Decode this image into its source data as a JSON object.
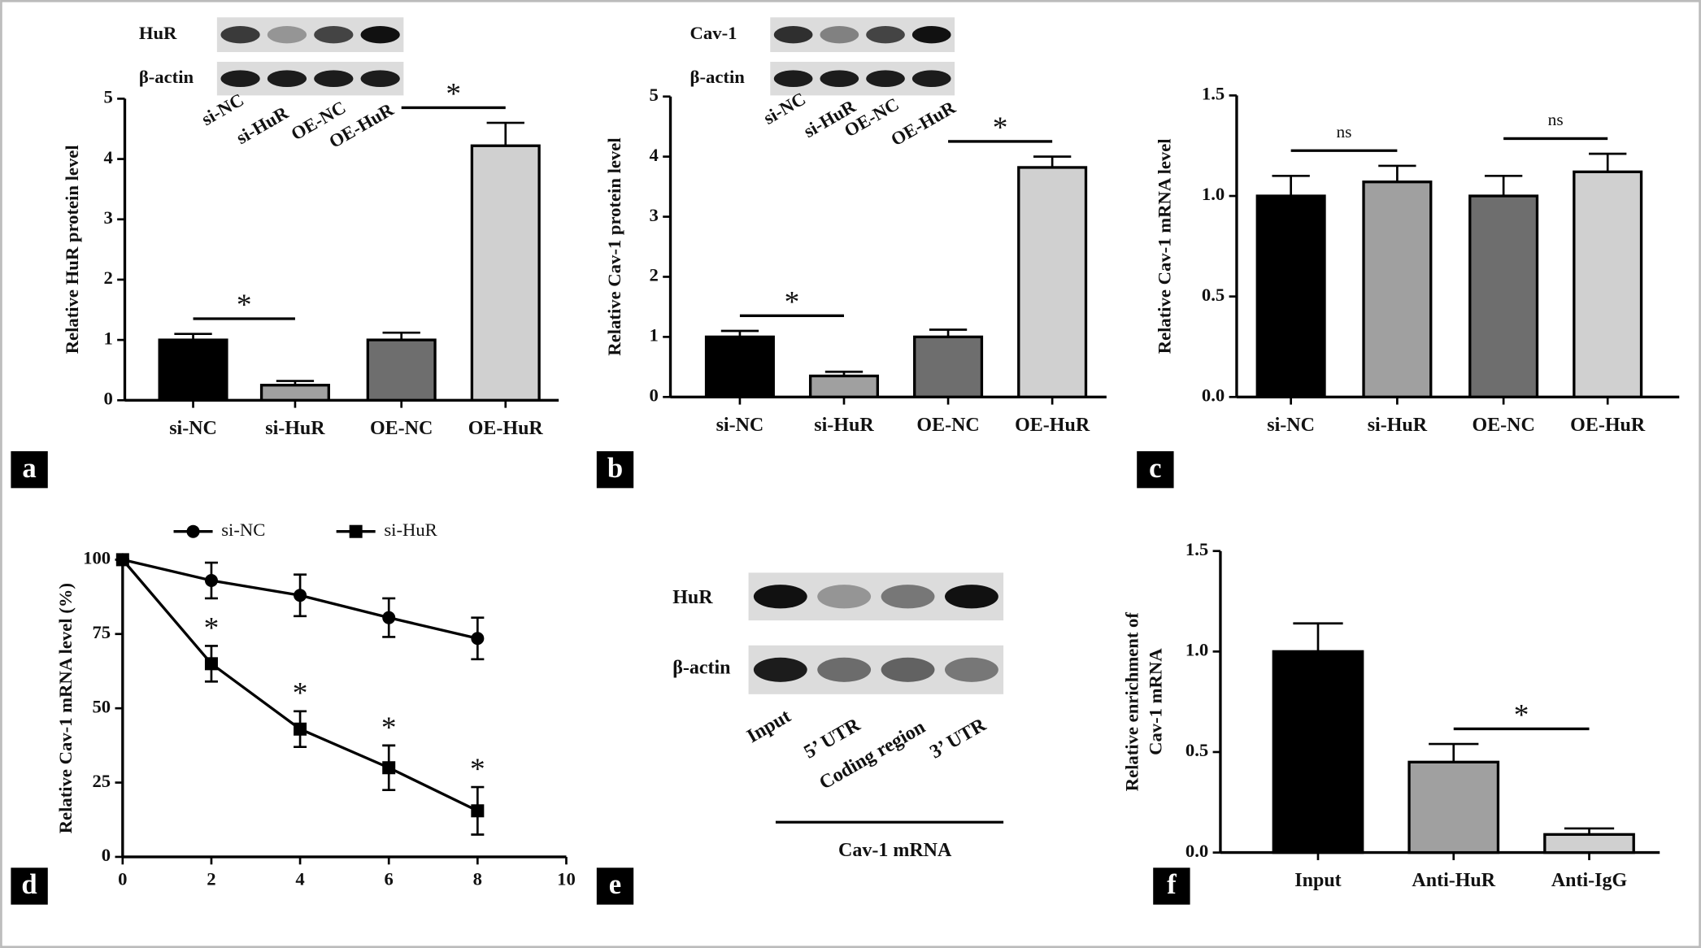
{
  "chart_data": [
    {
      "type": "bar",
      "panel": "a",
      "ylabel": "Relative HuR protein level",
      "categories": [
        "si-NC",
        "si-HuR",
        "OE-NC",
        "OE-HuR"
      ],
      "values": [
        1.0,
        0.25,
        1.0,
        4.22
      ],
      "errors": [
        0.1,
        0.07,
        0.12,
        0.38
      ],
      "colors": [
        "#000000",
        "#a0a0a0",
        "#6e6e6e",
        "#d0d0d0"
      ],
      "ylim": [
        0,
        5
      ],
      "yticks": [
        0,
        1,
        2,
        3,
        4,
        5
      ],
      "annotations": [
        {
          "text": "*",
          "between": [
            0,
            1
          ]
        },
        {
          "text": "*",
          "between": [
            2,
            3
          ]
        }
      ],
      "blot": {
        "rows": [
          "HuR",
          "β-actin"
        ],
        "lanes": [
          "si-NC",
          "si-HuR",
          "OE-NC",
          "OE-HuR"
        ]
      }
    },
    {
      "type": "bar",
      "panel": "b",
      "ylabel": "Relative Cav-1 protein level",
      "categories": [
        "si-NC",
        "si-HuR",
        "OE-NC",
        "OE-HuR"
      ],
      "values": [
        1.0,
        0.35,
        1.0,
        3.82
      ],
      "errors": [
        0.1,
        0.07,
        0.12,
        0.18
      ],
      "colors": [
        "#000000",
        "#a0a0a0",
        "#6e6e6e",
        "#d0d0d0"
      ],
      "ylim": [
        0,
        5
      ],
      "yticks": [
        0,
        1,
        2,
        3,
        4,
        5
      ],
      "annotations": [
        {
          "text": "*",
          "between": [
            0,
            1
          ]
        },
        {
          "text": "*",
          "between": [
            2,
            3
          ]
        }
      ],
      "blot": {
        "rows": [
          "Cav-1",
          "β-actin"
        ],
        "lanes": [
          "si-NC",
          "si-HuR",
          "OE-NC",
          "OE-HuR"
        ]
      }
    },
    {
      "type": "bar",
      "panel": "c",
      "ylabel": "Relative Cav-1 mRNA level",
      "categories": [
        "si-NC",
        "si-HuR",
        "OE-NC",
        "OE-HuR"
      ],
      "values": [
        1.0,
        1.07,
        1.0,
        1.12
      ],
      "errors": [
        0.1,
        0.08,
        0.1,
        0.09
      ],
      "colors": [
        "#000000",
        "#a0a0a0",
        "#6e6e6e",
        "#d0d0d0"
      ],
      "ylim": [
        0,
        1.5
      ],
      "yticks": [
        {
          "value": 0,
          "label": "0.0"
        },
        0.5,
        {
          "value": 1,
          "label": "1.0"
        },
        1.5
      ],
      "annotations": [
        {
          "text": "ns",
          "between": [
            0,
            1
          ]
        },
        {
          "text": "ns",
          "between": [
            2,
            3
          ]
        }
      ]
    },
    {
      "type": "line",
      "panel": "d",
      "ylabel": "Relative Cav-1 mRNA level (%)",
      "x": [
        0,
        2,
        4,
        6,
        8
      ],
      "xlim": [
        0,
        10
      ],
      "xticks": [
        0,
        2,
        4,
        6,
        8,
        10
      ],
      "ylim": [
        0,
        100
      ],
      "yticks": [
        0,
        25,
        50,
        75,
        100
      ],
      "series": [
        {
          "name": "si-NC",
          "color": "#000000",
          "marker": "circle",
          "values": [
            100,
            93,
            88,
            80.5,
            73.5
          ],
          "errors": [
            0,
            6,
            7,
            6.5,
            7
          ]
        },
        {
          "name": "si-HuR",
          "color": "#000000",
          "marker": "square",
          "values": [
            100,
            65,
            43,
            30,
            15.5
          ],
          "errors": [
            0,
            6,
            6,
            7.5,
            8
          ]
        }
      ],
      "annotations": [
        {
          "text": "*",
          "series": 1,
          "x": 2
        },
        {
          "text": "*",
          "series": 1,
          "x": 4
        },
        {
          "text": "*",
          "series": 1,
          "x": 6
        },
        {
          "text": "*",
          "series": 1,
          "x": 8
        }
      ]
    },
    {
      "type": "bar",
      "panel": "f",
      "ylabel": [
        "Relative enrichment of",
        "Cav-1 mRNA"
      ],
      "categories": [
        "Input",
        "Anti-HuR",
        "Anti-IgG"
      ],
      "values": [
        1.0,
        0.45,
        0.09
      ],
      "errors": [
        0.14,
        0.09,
        0.03
      ],
      "colors": [
        "#000000",
        "#a0a0a0",
        "#d0d0d0"
      ],
      "ylim": [
        0,
        1.5
      ],
      "yticks": [
        {
          "value": 0,
          "label": "0.0"
        },
        0.5,
        {
          "value": 1,
          "label": "1.0"
        },
        1.5
      ],
      "annotations": [
        {
          "text": "*",
          "between": [
            1,
            2
          ]
        }
      ]
    }
  ],
  "panel_e": {
    "panel": "e",
    "rows": [
      "HuR",
      "β-actin"
    ],
    "lanes": [
      "Input",
      "5’ UTR",
      "Coding region",
      "3’ UTR"
    ],
    "group": "Cav-1 mRNA"
  }
}
